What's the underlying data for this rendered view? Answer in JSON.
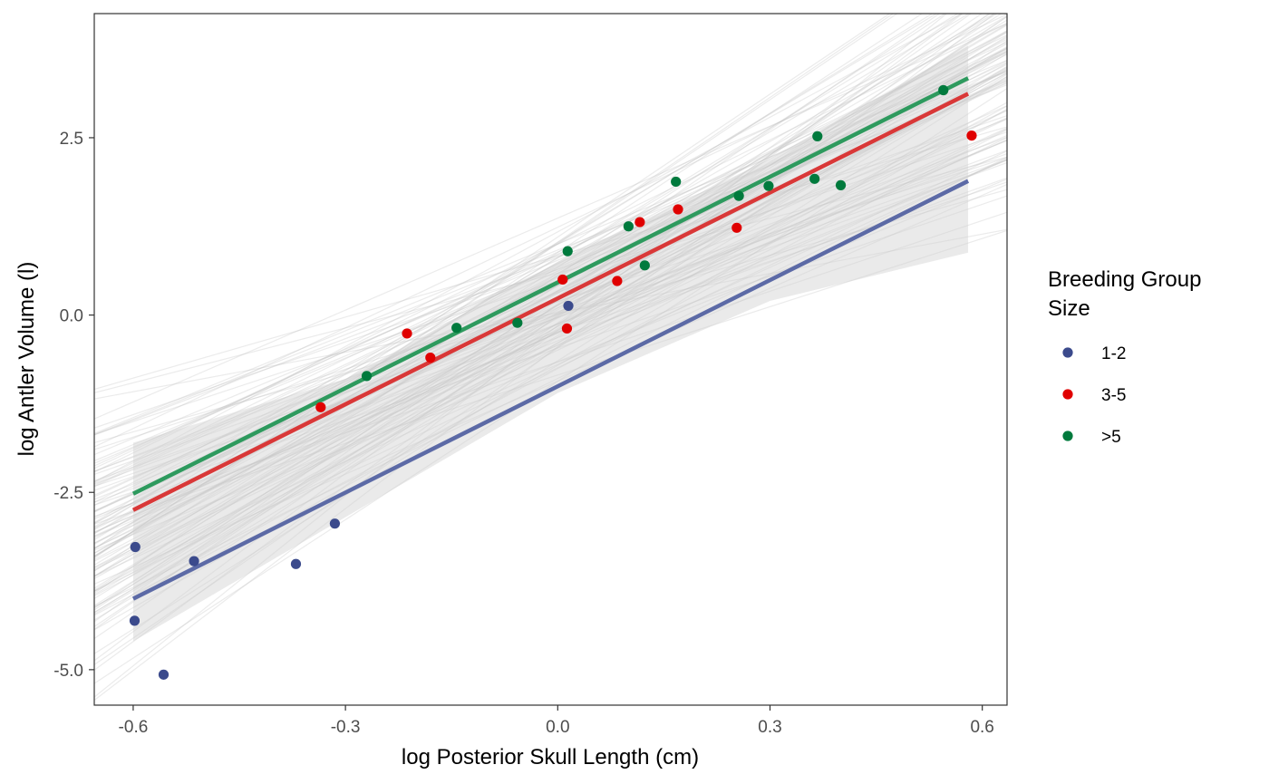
{
  "chart_data": {
    "type": "scatter",
    "xlabel": "log Posterior Skull Length (cm)",
    "ylabel": "log Antler Volume (l)",
    "xlim": [
      -0.655,
      0.635
    ],
    "ylim": [
      -5.5,
      4.25
    ],
    "xticks": [
      -0.6,
      -0.3,
      0.0,
      0.3,
      0.6
    ],
    "xtick_labels": [
      "-0.6",
      "-0.3",
      "0.0",
      "0.3",
      "0.6"
    ],
    "yticks": [
      -5.0,
      -2.5,
      0.0,
      2.5
    ],
    "ytick_labels": [
      "-5.0",
      "-2.5",
      "0.0",
      "2.5"
    ],
    "grid": false,
    "legend": {
      "title_lines": [
        "Breeding Group",
        "Size"
      ],
      "placement": "right"
    },
    "series": [
      {
        "name": "1-2",
        "color": "#3B4A8C",
        "line_color": "#5C6AA6",
        "points": [
          {
            "x": -0.597,
            "y": -3.27
          },
          {
            "x": -0.598,
            "y": -4.31
          },
          {
            "x": -0.557,
            "y": -5.07
          },
          {
            "x": -0.514,
            "y": -3.47
          },
          {
            "x": -0.37,
            "y": -3.51
          },
          {
            "x": -0.315,
            "y": -2.94
          },
          {
            "x": 0.015,
            "y": 0.13
          }
        ],
        "fit": {
          "x": [
            -0.6,
            0.58
          ],
          "y": [
            -4.0,
            1.89
          ]
        }
      },
      {
        "name": "3-5",
        "color": "#E00000",
        "line_color": "#D93838",
        "points": [
          {
            "x": -0.335,
            "y": -1.3
          },
          {
            "x": -0.213,
            "y": -0.26
          },
          {
            "x": -0.18,
            "y": -0.6
          },
          {
            "x": 0.007,
            "y": 0.5
          },
          {
            "x": 0.013,
            "y": -0.19
          },
          {
            "x": 0.084,
            "y": 0.48
          },
          {
            "x": 0.116,
            "y": 1.31
          },
          {
            "x": 0.17,
            "y": 1.49
          },
          {
            "x": 0.253,
            "y": 1.23
          },
          {
            "x": 0.585,
            "y": 2.53
          }
        ],
        "fit": {
          "x": [
            -0.6,
            0.58
          ],
          "y": [
            -2.75,
            3.12
          ]
        }
      },
      {
        "name": ">5",
        "color": "#007A3D",
        "line_color": "#2E9A5E",
        "points": [
          {
            "x": -0.27,
            "y": -0.86
          },
          {
            "x": -0.143,
            "y": -0.18
          },
          {
            "x": -0.057,
            "y": -0.11
          },
          {
            "x": 0.014,
            "y": 0.9
          },
          {
            "x": 0.1,
            "y": 1.25
          },
          {
            "x": 0.123,
            "y": 0.7
          },
          {
            "x": 0.167,
            "y": 1.88
          },
          {
            "x": 0.256,
            "y": 1.68
          },
          {
            "x": 0.298,
            "y": 1.82
          },
          {
            "x": 0.363,
            "y": 1.92
          },
          {
            "x": 0.367,
            "y": 2.52
          },
          {
            "x": 0.4,
            "y": 1.83
          },
          {
            "x": 0.545,
            "y": 3.17
          }
        ],
        "fit": {
          "x": [
            -0.6,
            0.58
          ],
          "y": [
            -2.52,
            3.34
          ]
        }
      }
    ],
    "confidence_band": {
      "color": "#D0D0D0",
      "x": [
        -0.6,
        -0.3,
        0.0,
        0.3,
        0.58
      ],
      "lower": [
        -4.6,
        -2.85,
        -1.1,
        0.2,
        0.88
      ],
      "upper": [
        -1.8,
        -0.9,
        0.75,
        2.2,
        3.8
      ]
    },
    "posterior_draws": {
      "count": 120,
      "color": "#BDBDBD",
      "center_x": 0.0,
      "intercept_mean": 0.2,
      "intercept_sd": 0.55,
      "slope_mean": 5.0,
      "slope_sd": 1.2
    }
  }
}
